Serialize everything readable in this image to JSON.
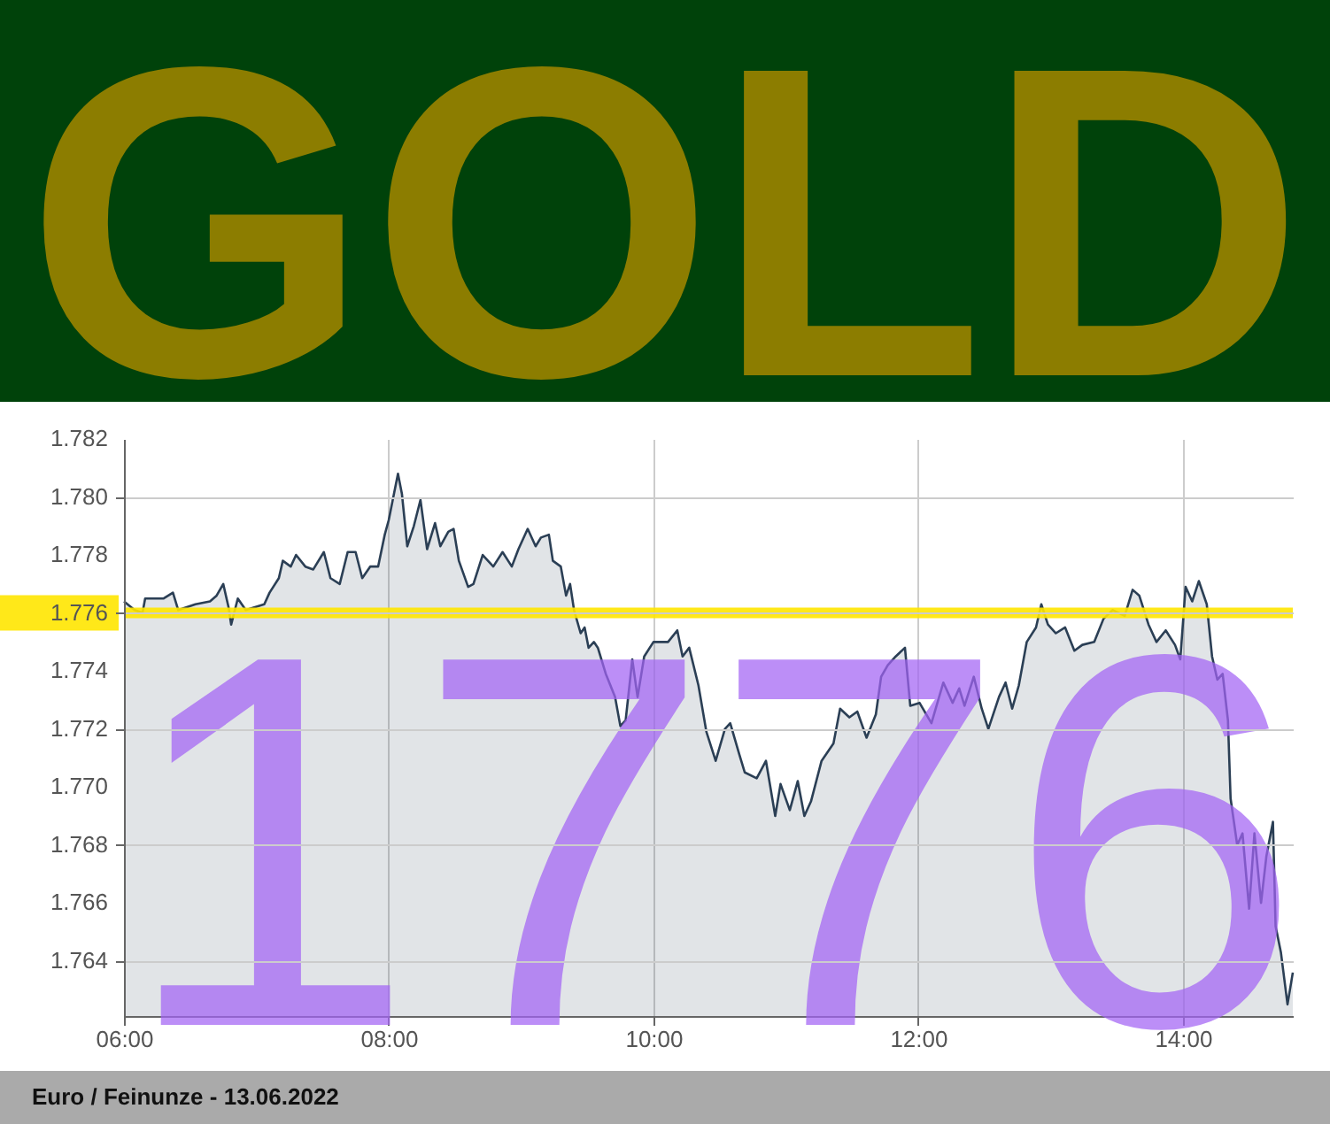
{
  "chart_data": {
    "type": "area",
    "title": "GOLD",
    "annotations": [
      "1776",
      "Euro / Feinunze - 13.06.2022"
    ],
    "x": [
      6.0,
      6.08,
      6.14,
      6.16,
      6.3,
      6.37,
      6.41,
      6.54,
      6.65,
      6.7,
      6.75,
      6.79,
      6.81,
      6.86,
      6.92,
      7.06,
      7.1,
      7.17,
      7.2,
      7.26,
      7.3,
      7.37,
      7.43,
      7.51,
      7.56,
      7.63,
      7.69,
      7.75,
      7.8,
      7.86,
      7.92,
      7.97,
      8.0,
      8.07,
      8.1,
      8.14,
      8.19,
      8.24,
      8.29,
      8.35,
      8.39,
      8.45,
      8.49,
      8.53,
      8.6,
      8.64,
      8.71,
      8.79,
      8.86,
      8.93,
      8.98,
      9.05,
      9.11,
      9.15,
      9.21,
      9.24,
      9.3,
      9.34,
      9.37,
      9.4,
      9.45,
      9.48,
      9.51,
      9.55,
      9.58,
      9.64,
      9.71,
      9.75,
      9.79,
      9.84,
      9.88,
      9.93,
      10.0,
      10.11,
      10.18,
      10.22,
      10.27,
      10.34,
      10.4,
      10.47,
      10.54,
      10.58,
      10.65,
      10.69,
      10.78,
      10.85,
      10.92,
      10.96,
      11.03,
      11.09,
      11.14,
      11.19,
      11.27,
      11.36,
      11.41,
      11.48,
      11.54,
      11.61,
      11.68,
      11.72,
      11.77,
      11.83,
      11.9,
      11.94,
      12.01,
      12.1,
      12.19,
      12.26,
      12.31,
      12.35,
      12.42,
      12.48,
      12.53,
      12.61,
      12.66,
      12.71,
      12.76,
      12.82,
      12.89,
      12.93,
      12.98,
      13.04,
      13.11,
      13.18,
      13.24,
      13.33,
      13.4,
      13.47,
      13.56,
      13.62,
      13.67,
      13.74,
      13.8,
      13.87,
      13.94,
      13.98,
      14.02,
      14.07,
      14.12,
      14.18,
      14.22,
      14.26,
      14.3,
      14.34,
      14.36,
      14.41,
      14.45,
      14.5,
      14.54,
      14.59,
      14.63,
      14.68,
      14.7,
      14.74,
      14.79,
      14.83
    ],
    "series": [
      {
        "color": "#2b3f55",
        "values": [
          1776.4,
          1776.1,
          1776.0,
          1776.5,
          1776.5,
          1776.7,
          1776.1,
          1776.3,
          1776.4,
          1776.6,
          1777.0,
          1776.2,
          1775.6,
          1776.5,
          1776.1,
          1776.3,
          1776.7,
          1777.2,
          1777.8,
          1777.6,
          1778.0,
          1777.6,
          1777.5,
          1778.1,
          1777.2,
          1777.0,
          1778.1,
          1778.1,
          1777.2,
          1777.6,
          1777.6,
          1778.7,
          1779.2,
          1780.8,
          1780.1,
          1778.3,
          1779.0,
          1779.9,
          1778.2,
          1779.1,
          1778.3,
          1778.8,
          1778.9,
          1777.8,
          1776.9,
          1777.0,
          1778.0,
          1777.6,
          1778.1,
          1777.6,
          1778.2,
          1778.9,
          1778.3,
          1778.6,
          1778.7,
          1777.8,
          1777.6,
          1776.6,
          1777.0,
          1776.1,
          1775.3,
          1775.5,
          1774.8,
          1775.0,
          1774.8,
          1773.9,
          1773.1,
          1772.1,
          1772.3,
          1774.4,
          1773.1,
          1774.5,
          1775.0,
          1775.0,
          1775.4,
          1774.5,
          1774.8,
          1773.5,
          1771.9,
          1770.9,
          1772.0,
          1772.2,
          1771.1,
          1770.5,
          1770.3,
          1770.9,
          1769.0,
          1770.1,
          1769.2,
          1770.2,
          1769.0,
          1769.5,
          1770.9,
          1771.5,
          1772.7,
          1772.4,
          1772.6,
          1771.7,
          1772.5,
          1773.8,
          1774.2,
          1774.5,
          1774.8,
          1772.8,
          1772.9,
          1772.2,
          1773.6,
          1772.9,
          1773.4,
          1772.8,
          1773.8,
          1772.7,
          1772.0,
          1773.1,
          1773.6,
          1772.7,
          1773.5,
          1775.0,
          1775.5,
          1776.3,
          1775.6,
          1775.3,
          1775.5,
          1774.7,
          1774.9,
          1775.0,
          1775.8,
          1776.1,
          1775.9,
          1776.8,
          1776.6,
          1775.6,
          1775.0,
          1775.4,
          1774.9,
          1774.4,
          1776.9,
          1776.4,
          1777.1,
          1776.3,
          1774.5,
          1773.7,
          1773.9,
          1772.3,
          1769.6,
          1768.0,
          1768.4,
          1765.8,
          1768.4,
          1766.0,
          1767.6,
          1768.8,
          1765.2,
          1764.3,
          1762.5,
          1763.6
        ]
      }
    ],
    "xlim": [
      6.0,
      14.83
    ],
    "xticks": [
      {
        "value": 6,
        "label": "06:00"
      },
      {
        "value": 8,
        "label": "08:00"
      },
      {
        "value": 10,
        "label": "10:00"
      },
      {
        "value": 12,
        "label": "12:00"
      },
      {
        "value": 14,
        "label": "14:00"
      }
    ],
    "ylim": [
      1762.1,
      1782
    ],
    "yticks": [
      {
        "value": 1764,
        "label": "1.764"
      },
      {
        "value": 1766,
        "label": "1.766"
      },
      {
        "value": 1768,
        "label": "1.768"
      },
      {
        "value": 1770,
        "label": "1.770"
      },
      {
        "value": 1772,
        "label": "1.772"
      },
      {
        "value": 1774,
        "label": "1.774"
      },
      {
        "value": 1776,
        "label": "1.776"
      },
      {
        "value": 1778,
        "label": "1.778"
      },
      {
        "value": 1780,
        "label": "1.780"
      },
      {
        "value": 1782,
        "label": "1.782"
      }
    ],
    "ref_lines": [
      {
        "axis": "y",
        "value": 1776,
        "color": "#ffe600"
      }
    ],
    "grid": true
  }
}
